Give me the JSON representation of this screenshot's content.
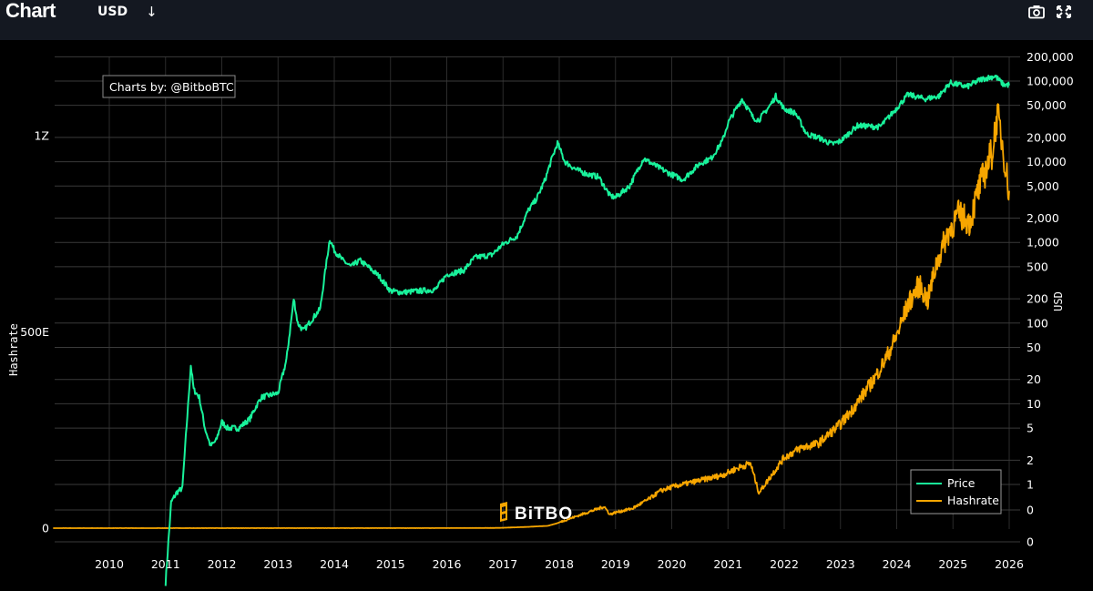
{
  "header": {
    "title": "Chart",
    "currency": "USD",
    "currency_icon": "arrow-down-icon",
    "tools": [
      "camera-icon",
      "expand-icon"
    ]
  },
  "credit": "Charts by: @BitboBTC",
  "watermark": "BiTBO",
  "colors": {
    "background": "#000000",
    "topbar": "#141821",
    "grid": "#3a3a3a",
    "price": "#19f29b",
    "hashrate": "#f7a600"
  },
  "chart_data": {
    "type": "line",
    "title": "",
    "xlabel": "",
    "left_axis": {
      "label": "Hashrate",
      "scale": "linear",
      "range": [
        0,
        1200
      ],
      "ticks": [
        {
          "value": 0,
          "label": "0"
        },
        {
          "value": 500,
          "label": "500E"
        },
        {
          "value": 1000,
          "label": "1Z"
        }
      ]
    },
    "right_axis": {
      "label": "USD",
      "scale": "log",
      "ticks": [
        "200,000",
        "100,000",
        "50,000",
        "20,000",
        "10,000",
        "5,000",
        "2,000",
        "1,000",
        "500",
        "200",
        "100",
        "50",
        "20",
        "10",
        "5",
        "2",
        "1",
        "0",
        "0"
      ]
    },
    "x_ticks": [
      "2010",
      "2011",
      "2012",
      "2013",
      "2014",
      "2015",
      "2016",
      "2017",
      "2018",
      "2019",
      "2020",
      "2021",
      "2022",
      "2023",
      "2024",
      "2025",
      "2026"
    ],
    "legend": {
      "position": "bottom-right",
      "entries": [
        "Price",
        "Hashrate"
      ]
    },
    "series": [
      {
        "name": "Price",
        "axis": "right",
        "points": [
          [
            2011.0,
            0.06
          ],
          [
            2011.1,
            0.6
          ],
          [
            2011.2,
            0.8
          ],
          [
            2011.3,
            0.9
          ],
          [
            2011.35,
            3
          ],
          [
            2011.45,
            30
          ],
          [
            2011.5,
            15
          ],
          [
            2011.6,
            12
          ],
          [
            2011.7,
            5
          ],
          [
            2011.8,
            3
          ],
          [
            2011.9,
            3.5
          ],
          [
            2012.0,
            6
          ],
          [
            2012.1,
            5
          ],
          [
            2012.3,
            5
          ],
          [
            2012.5,
            6.5
          ],
          [
            2012.6,
            9
          ],
          [
            2012.7,
            12
          ],
          [
            2012.9,
            13
          ],
          [
            2013.0,
            13.5
          ],
          [
            2013.15,
            35
          ],
          [
            2013.28,
            200
          ],
          [
            2013.35,
            100
          ],
          [
            2013.45,
            80
          ],
          [
            2013.6,
            110
          ],
          [
            2013.75,
            150
          ],
          [
            2013.85,
            500
          ],
          [
            2013.92,
            1100
          ],
          [
            2014.0,
            800
          ],
          [
            2014.15,
            600
          ],
          [
            2014.3,
            500
          ],
          [
            2014.45,
            600
          ],
          [
            2014.6,
            500
          ],
          [
            2014.8,
            380
          ],
          [
            2015.0,
            250
          ],
          [
            2015.2,
            240
          ],
          [
            2015.5,
            250
          ],
          [
            2015.8,
            260
          ],
          [
            2016.0,
            400
          ],
          [
            2016.3,
            450
          ],
          [
            2016.5,
            650
          ],
          [
            2016.8,
            700
          ],
          [
            2017.0,
            950
          ],
          [
            2017.25,
            1200
          ],
          [
            2017.45,
            2500
          ],
          [
            2017.6,
            3500
          ],
          [
            2017.75,
            6000
          ],
          [
            2017.85,
            10000
          ],
          [
            2017.97,
            17000
          ],
          [
            2018.1,
            10000
          ],
          [
            2018.3,
            8000
          ],
          [
            2018.5,
            7000
          ],
          [
            2018.7,
            6500
          ],
          [
            2018.9,
            3800
          ],
          [
            2019.0,
            3600
          ],
          [
            2019.25,
            5000
          ],
          [
            2019.5,
            11000
          ],
          [
            2019.7,
            9000
          ],
          [
            2019.95,
            7200
          ],
          [
            2020.2,
            6000
          ],
          [
            2020.5,
            9500
          ],
          [
            2020.7,
            11000
          ],
          [
            2020.9,
            18000
          ],
          [
            2021.0,
            30000
          ],
          [
            2021.1,
            40000
          ],
          [
            2021.25,
            60000
          ],
          [
            2021.45,
            35000
          ],
          [
            2021.55,
            33000
          ],
          [
            2021.75,
            50000
          ],
          [
            2021.85,
            65000
          ],
          [
            2022.0,
            45000
          ],
          [
            2022.2,
            40000
          ],
          [
            2022.4,
            22000
          ],
          [
            2022.6,
            20000
          ],
          [
            2022.85,
            16500
          ],
          [
            2023.0,
            18000
          ],
          [
            2023.3,
            28000
          ],
          [
            2023.7,
            27000
          ],
          [
            2023.95,
            42000
          ],
          [
            2024.2,
            68000
          ],
          [
            2024.5,
            60000
          ],
          [
            2024.75,
            65000
          ],
          [
            2024.95,
            95000
          ],
          [
            2025.25,
            85000
          ],
          [
            2025.5,
            105000
          ],
          [
            2025.75,
            115000
          ],
          [
            2025.9,
            90000
          ],
          [
            2026.0,
            90000
          ]
        ]
      },
      {
        "name": "Hashrate",
        "axis": "left",
        "points": [
          [
            2009.0,
            0
          ],
          [
            2016.0,
            0.2
          ],
          [
            2016.8,
            0.5
          ],
          [
            2017.0,
            1
          ],
          [
            2017.4,
            3
          ],
          [
            2017.8,
            6
          ],
          [
            2017.95,
            12
          ],
          [
            2018.2,
            25
          ],
          [
            2018.5,
            40
          ],
          [
            2018.8,
            55
          ],
          [
            2018.9,
            35
          ],
          [
            2019.0,
            40
          ],
          [
            2019.3,
            50
          ],
          [
            2019.6,
            75
          ],
          [
            2019.8,
            95
          ],
          [
            2020.0,
            105
          ],
          [
            2020.3,
            115
          ],
          [
            2020.6,
            125
          ],
          [
            2020.9,
            135
          ],
          [
            2021.2,
            155
          ],
          [
            2021.4,
            165
          ],
          [
            2021.55,
            90
          ],
          [
            2021.8,
            140
          ],
          [
            2022.0,
            180
          ],
          [
            2022.3,
            205
          ],
          [
            2022.6,
            215
          ],
          [
            2022.8,
            240
          ],
          [
            2023.0,
            265
          ],
          [
            2023.2,
            300
          ],
          [
            2023.4,
            340
          ],
          [
            2023.6,
            380
          ],
          [
            2023.8,
            430
          ],
          [
            2024.0,
            490
          ],
          [
            2024.2,
            570
          ],
          [
            2024.4,
            620
          ],
          [
            2024.55,
            580
          ],
          [
            2024.7,
            670
          ],
          [
            2024.9,
            750
          ],
          [
            2025.1,
            800
          ],
          [
            2025.3,
            780
          ],
          [
            2025.45,
            860
          ],
          [
            2025.6,
            920
          ],
          [
            2025.7,
            960
          ],
          [
            2025.78,
            1050
          ],
          [
            2025.85,
            1010
          ],
          [
            2025.92,
            940
          ],
          [
            2026.0,
            850
          ]
        ]
      }
    ]
  }
}
